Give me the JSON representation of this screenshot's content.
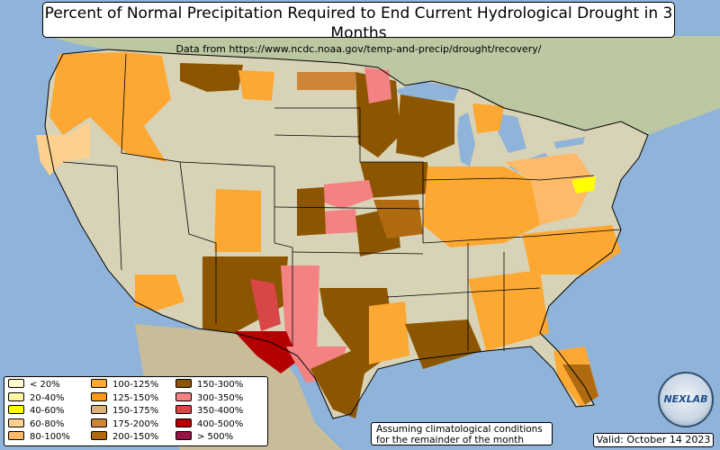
{
  "title": "Percent of Normal Precipitation Required to End Current Hydrological Drought in 3 Months",
  "subtitle": "Data from https://www.ncdc.noaa.gov/temp-and-precip/drought/recovery/",
  "legend": [
    {
      "label": "< 20%",
      "color": "#ffffd0"
    },
    {
      "label": "20-40%",
      "color": "#fff8a0"
    },
    {
      "label": "40-60%",
      "color": "#ffff00"
    },
    {
      "label": "60-80%",
      "color": "#fcd08e"
    },
    {
      "label": "80-100%",
      "color": "#fcba6a"
    },
    {
      "label": "100-125%",
      "color": "#fca832"
    },
    {
      "label": "125-150%",
      "color": "#fc9a18"
    },
    {
      "label": "150-175%",
      "color": "#dcb07c"
    },
    {
      "label": "175-200%",
      "color": "#cc8536"
    },
    {
      "label": "200-150%",
      "color": "#b06a10"
    },
    {
      "label": "150-300%",
      "color": "#8c5500"
    },
    {
      "label": "300-350%",
      "color": "#f48282"
    },
    {
      "label": "350-400%",
      "color": "#d84646"
    },
    {
      "label": "400-500%",
      "color": "#b40000"
    },
    {
      "label": "> 500%",
      "color": "#961446"
    }
  ],
  "note": [
    "Assuming climatological conditions",
    "for the remainder of the month"
  ],
  "valid": "Valid: October 14 2023",
  "logo_text": "NEXLAB"
}
